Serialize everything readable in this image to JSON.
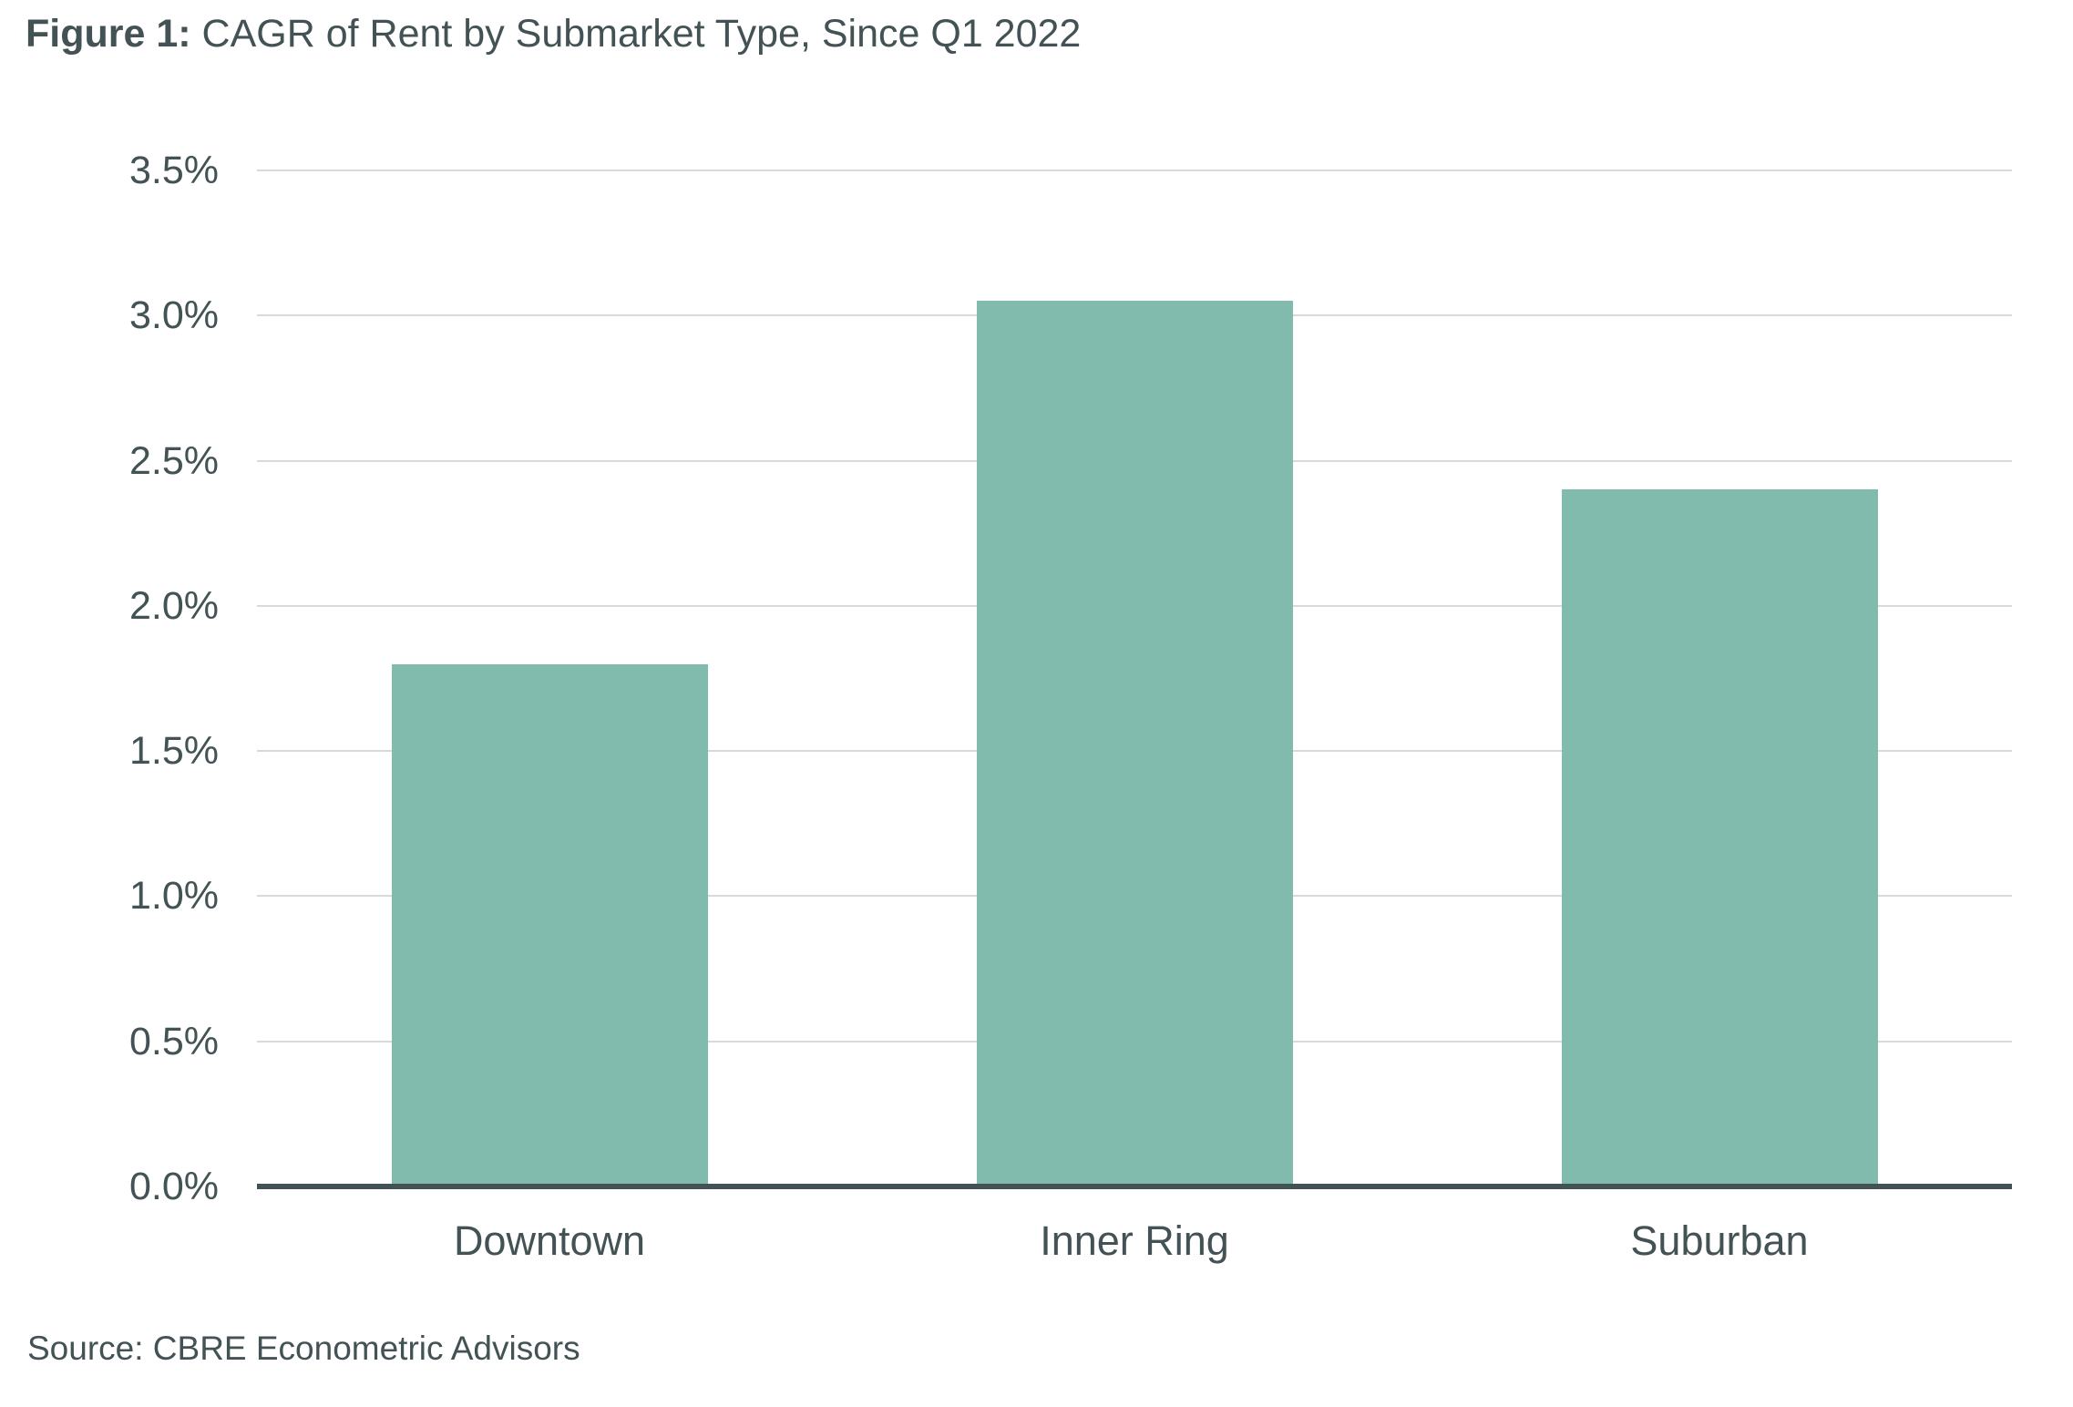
{
  "figure": {
    "title_prefix": "Figure 1:",
    "title_rest": " CAGR of Rent by Submarket Type, Since Q1 2022",
    "source": "Source: CBRE Econometric Advisors"
  },
  "colors": {
    "bar": "#80BBAD",
    "text": "#435254",
    "gridline": "#D7DADA",
    "axis": "#435254",
    "background": "#FFFFFF"
  },
  "chart_data": {
    "type": "bar",
    "title": "Figure 1: CAGR of Rent by Submarket Type, Since Q1 2022",
    "categories": [
      "Downtown",
      "Inner Ring",
      "Suburban"
    ],
    "values": [
      1.8,
      3.05,
      2.4
    ],
    "unit": "%",
    "xlabel": "",
    "ylabel": "",
    "ylim": [
      0,
      3.5
    ],
    "ytick_step": 0.5,
    "ytick_labels": [
      "0.0%",
      "0.5%",
      "1.0%",
      "1.5%",
      "2.0%",
      "2.5%",
      "3.0%",
      "3.5%"
    ],
    "grid": true,
    "legend": false,
    "source": "Source: CBRE Econometric Advisors"
  }
}
